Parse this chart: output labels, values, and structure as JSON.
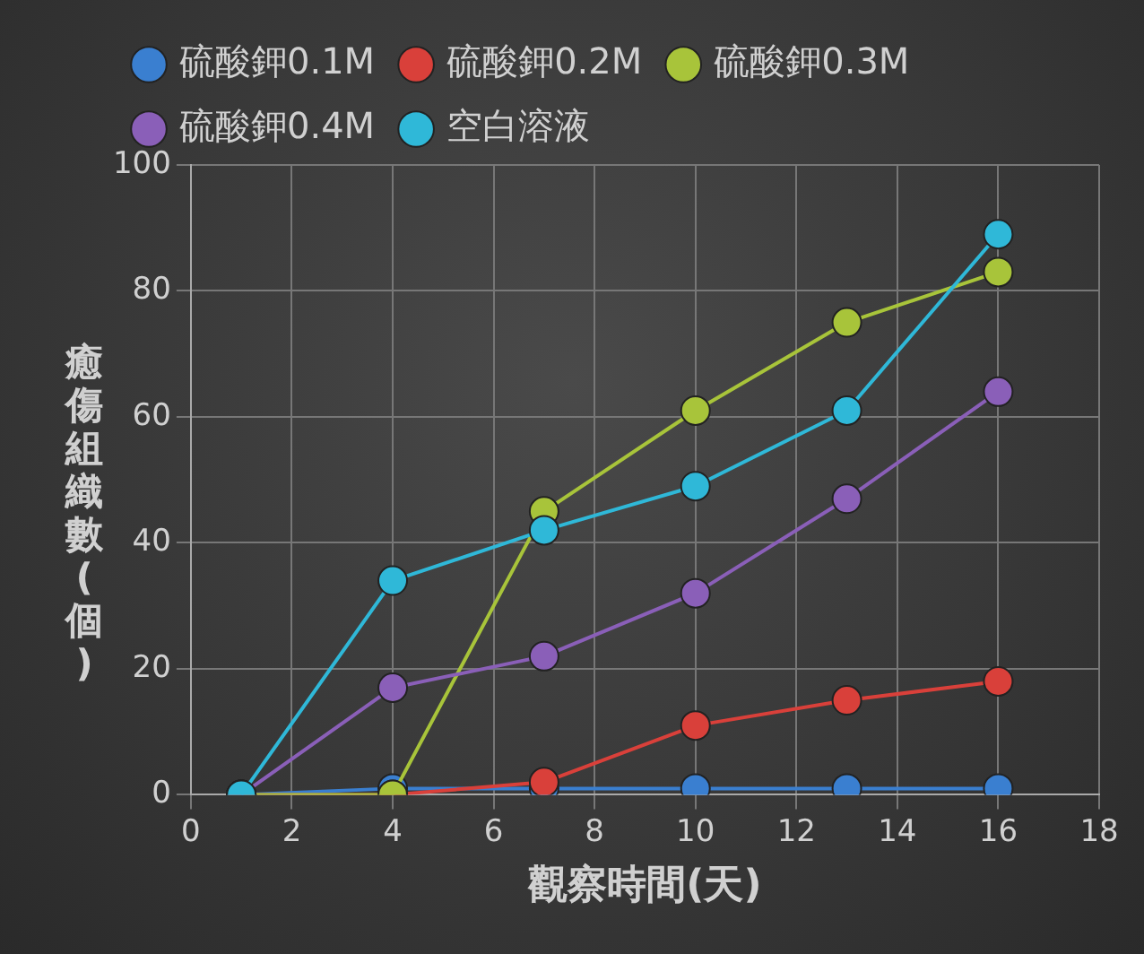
{
  "chart_data": {
    "type": "line",
    "xlabel": "觀察時間(天)",
    "ylabel": "癒傷組織數(個)",
    "x": [
      1,
      4,
      7,
      10,
      13,
      16
    ],
    "series": [
      {
        "name": "硫酸鉀0.1M",
        "color": "#3a7fd0",
        "values": [
          0,
          1,
          1,
          1,
          1,
          1
        ]
      },
      {
        "name": "硫酸鉀0.2M",
        "color": "#d9403a",
        "values": [
          0,
          0,
          2,
          11,
          15,
          18
        ]
      },
      {
        "name": "硫酸鉀0.3M",
        "color": "#a8c43a",
        "values": [
          0,
          0,
          45,
          61,
          75,
          83
        ]
      },
      {
        "name": "硫酸鉀0.4M",
        "color": "#8a5fb8",
        "values": [
          0,
          17,
          22,
          32,
          47,
          64
        ]
      },
      {
        "name": "空白溶液",
        "color": "#2fb8d8",
        "values": [
          0,
          34,
          42,
          49,
          61,
          89
        ]
      }
    ],
    "xlim": [
      0,
      18
    ],
    "xticks": [
      0,
      2,
      4,
      6,
      8,
      10,
      12,
      14,
      16,
      18
    ],
    "ylim": [
      0,
      100
    ],
    "yticks": [
      0,
      20,
      40,
      60,
      80,
      100
    ],
    "grid": true,
    "legend": "top",
    "marker": "circle",
    "line_style": "solid"
  }
}
